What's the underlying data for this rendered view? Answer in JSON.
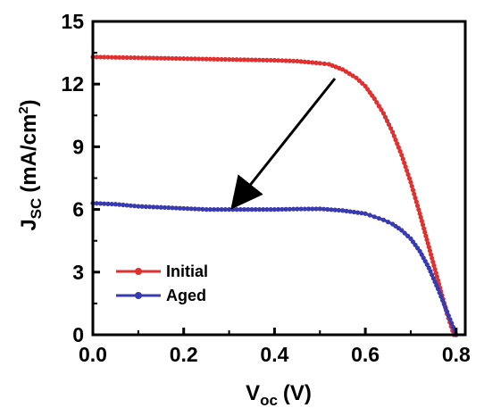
{
  "chart_data": {
    "type": "line",
    "xlabel": {
      "main": "V",
      "sub": "oc",
      "unit": "(V)"
    },
    "ylabel": {
      "main": "J",
      "sub": "SC",
      "unit_pre": "(mA/cm",
      "unit_sup": "2",
      "unit_post": ")"
    },
    "xlim": [
      0,
      0.82
    ],
    "ylim": [
      0,
      15
    ],
    "xticks": [
      "0.0",
      "0.2",
      "0.4",
      "0.6",
      "0.8"
    ],
    "yticks": [
      "0",
      "3",
      "6",
      "9",
      "12",
      "15"
    ],
    "legend_position": "bottom-left",
    "series": [
      {
        "name": "Initial",
        "color": "#e03030",
        "x": [
          0.0,
          0.05,
          0.1,
          0.15,
          0.2,
          0.25,
          0.3,
          0.35,
          0.4,
          0.45,
          0.5,
          0.52,
          0.55,
          0.58,
          0.6,
          0.62,
          0.64,
          0.66,
          0.68,
          0.7,
          0.72,
          0.74,
          0.76,
          0.78,
          0.795
        ],
        "y": [
          13.3,
          13.28,
          13.26,
          13.24,
          13.22,
          13.2,
          13.18,
          13.16,
          13.14,
          13.1,
          13.0,
          12.95,
          12.7,
          12.3,
          11.9,
          11.3,
          10.6,
          9.7,
          8.6,
          7.3,
          5.8,
          4.2,
          2.6,
          1.0,
          0.0
        ]
      },
      {
        "name": "Aged",
        "color": "#3a3ab0",
        "x": [
          0.0,
          0.05,
          0.1,
          0.15,
          0.2,
          0.25,
          0.3,
          0.35,
          0.4,
          0.45,
          0.5,
          0.55,
          0.6,
          0.62,
          0.64,
          0.66,
          0.68,
          0.7,
          0.72,
          0.74,
          0.76,
          0.78,
          0.8
        ],
        "y": [
          6.3,
          6.25,
          6.15,
          6.1,
          6.05,
          6.0,
          6.0,
          6.0,
          6.0,
          6.02,
          6.03,
          5.95,
          5.8,
          5.65,
          5.5,
          5.3,
          5.0,
          4.6,
          4.0,
          3.2,
          2.2,
          1.1,
          0.0
        ]
      }
    ]
  }
}
